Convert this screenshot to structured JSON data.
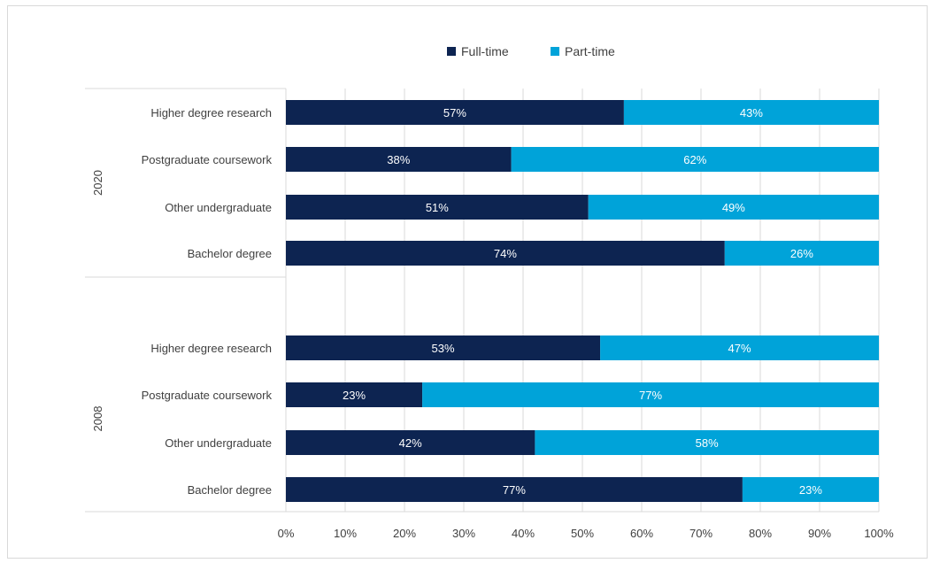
{
  "chart_data": {
    "type": "bar",
    "orientation": "horizontal",
    "stacked": true,
    "normalized": true,
    "legend_position": "top",
    "grid": true,
    "xlim": [
      0,
      100
    ],
    "x_ticks": [
      "0%",
      "10%",
      "20%",
      "30%",
      "40%",
      "50%",
      "60%",
      "70%",
      "80%",
      "90%",
      "100%"
    ],
    "groups": [
      "2020",
      "2008"
    ],
    "categories": [
      {
        "group": "2020",
        "label": "Higher degree research"
      },
      {
        "group": "2020",
        "label": "Postgraduate coursework"
      },
      {
        "group": "2020",
        "label": "Other undergraduate"
      },
      {
        "group": "2020",
        "label": "Bachelor degree"
      },
      {
        "group": "2008",
        "label": "Higher degree research"
      },
      {
        "group": "2008",
        "label": "Postgraduate coursework"
      },
      {
        "group": "2008",
        "label": "Other undergraduate"
      },
      {
        "group": "2008",
        "label": "Bachelor degree"
      }
    ],
    "series": [
      {
        "name": "Full-time",
        "color": "#0d2451",
        "values": [
          57,
          38,
          51,
          74,
          53,
          23,
          42,
          77
        ],
        "labels": [
          "57%",
          "38%",
          "51%",
          "74%",
          "53%",
          "23%",
          "42%",
          "77%"
        ]
      },
      {
        "name": "Part-time",
        "color": "#00a3d9",
        "values": [
          43,
          62,
          49,
          26,
          47,
          77,
          58,
          23
        ],
        "labels": [
          "43%",
          "62%",
          "49%",
          "26%",
          "47%",
          "77%",
          "58%",
          "23%"
        ]
      }
    ],
    "title": "",
    "xlabel": "",
    "ylabel": ""
  }
}
